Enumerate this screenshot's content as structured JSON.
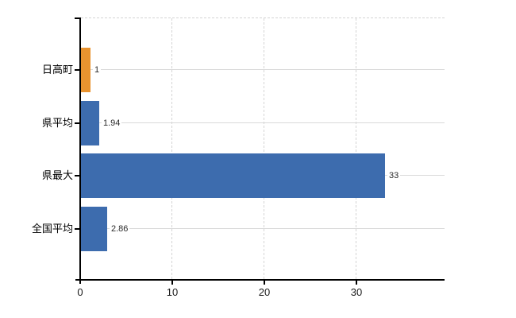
{
  "chart_data": {
    "type": "bar",
    "orientation": "horizontal",
    "title": "",
    "categories": [
      "日高町",
      "県平均",
      "県最大",
      "全国平均"
    ],
    "values": [
      1,
      1.94,
      33,
      2.86
    ],
    "value_labels": [
      "1",
      "1.94",
      "33",
      "2.86"
    ],
    "x_ticks": [
      "0",
      "10",
      "20",
      "30"
    ],
    "x_tick_values": [
      0,
      10,
      20,
      30
    ],
    "xlim": [
      0,
      39.5
    ],
    "legend": "none",
    "grid": {
      "horizontal_lines": "solid-light-gray",
      "vertical_lines": "dashed-light-gray",
      "top_border": "dashed-light-gray"
    },
    "bar_colors": [
      "#e9932f",
      "#3d6cae",
      "#3d6cae",
      "#3d6cae"
    ],
    "highlight_color": "#e9932f",
    "default_color": "#3d6cae",
    "axis_color": "#000000"
  }
}
